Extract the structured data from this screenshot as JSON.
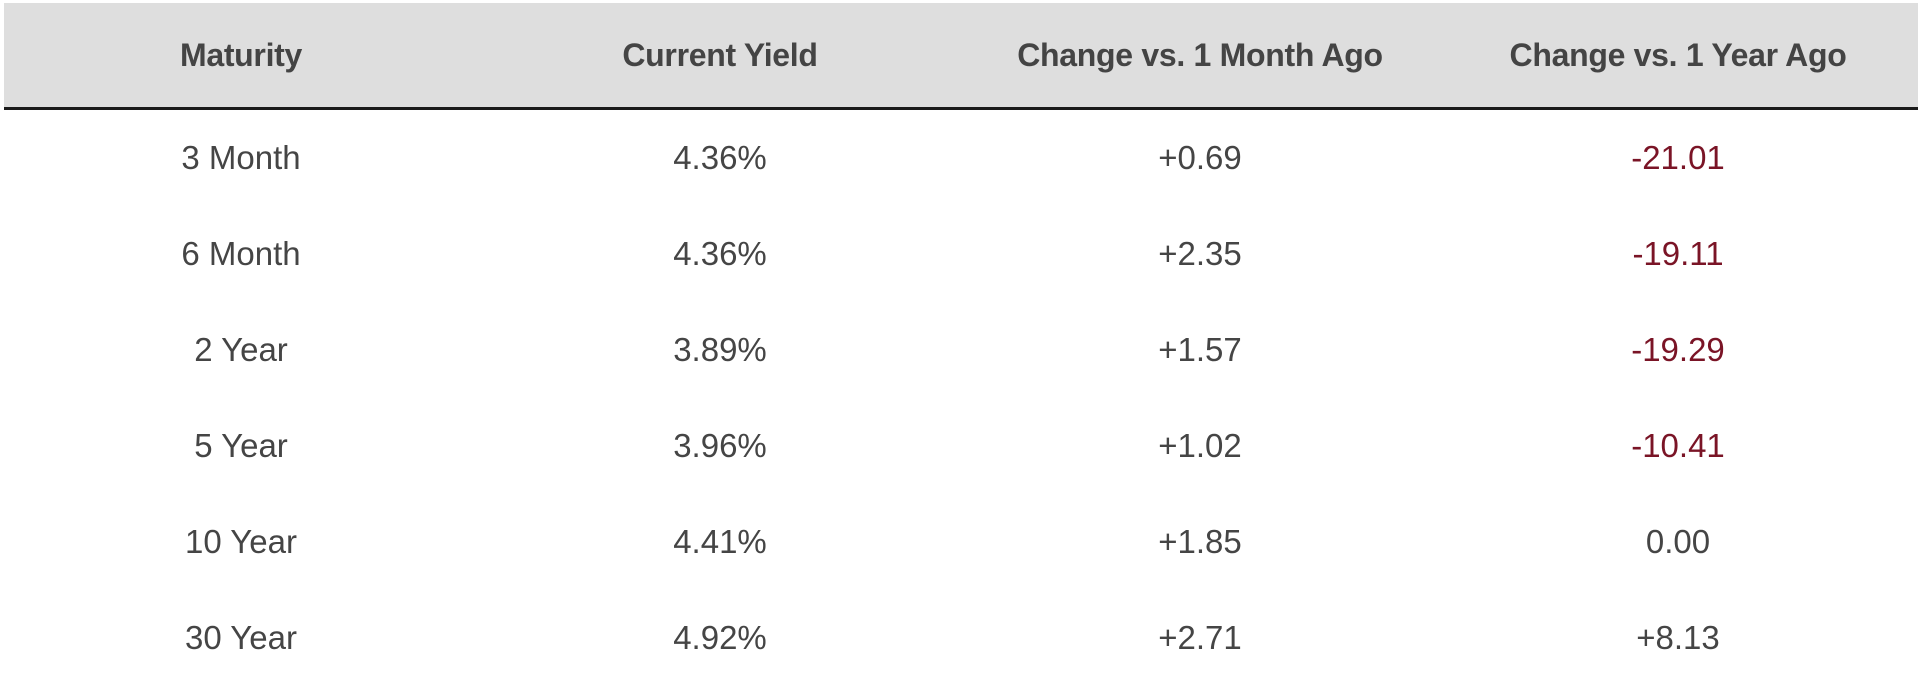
{
  "table": {
    "headers": [
      "Maturity",
      "Current Yield",
      "Change vs. 1 Month Ago",
      "Change vs. 1 Year Ago"
    ],
    "rows": [
      {
        "maturity": "3 Month",
        "yield": "4.36%",
        "m1": "+0.69",
        "y1": "-21.01"
      },
      {
        "maturity": "6 Month",
        "yield": "4.36%",
        "m1": "+2.35",
        "y1": "-19.11"
      },
      {
        "maturity": "2 Year",
        "yield": "3.89%",
        "m1": "+1.57",
        "y1": "-19.29"
      },
      {
        "maturity": "5 Year",
        "yield": "3.96%",
        "m1": "+1.02",
        "y1": "-10.41"
      },
      {
        "maturity": "10 Year",
        "yield": "4.41%",
        "m1": "+1.85",
        "y1": "0.00"
      },
      {
        "maturity": "30 Year",
        "yield": "4.92%",
        "m1": "+2.71",
        "y1": "+8.13"
      }
    ]
  },
  "colors": {
    "header_bg": "#dedede",
    "text": "#454545",
    "negative": "#7a1426",
    "rule": "#1a1a1a"
  }
}
